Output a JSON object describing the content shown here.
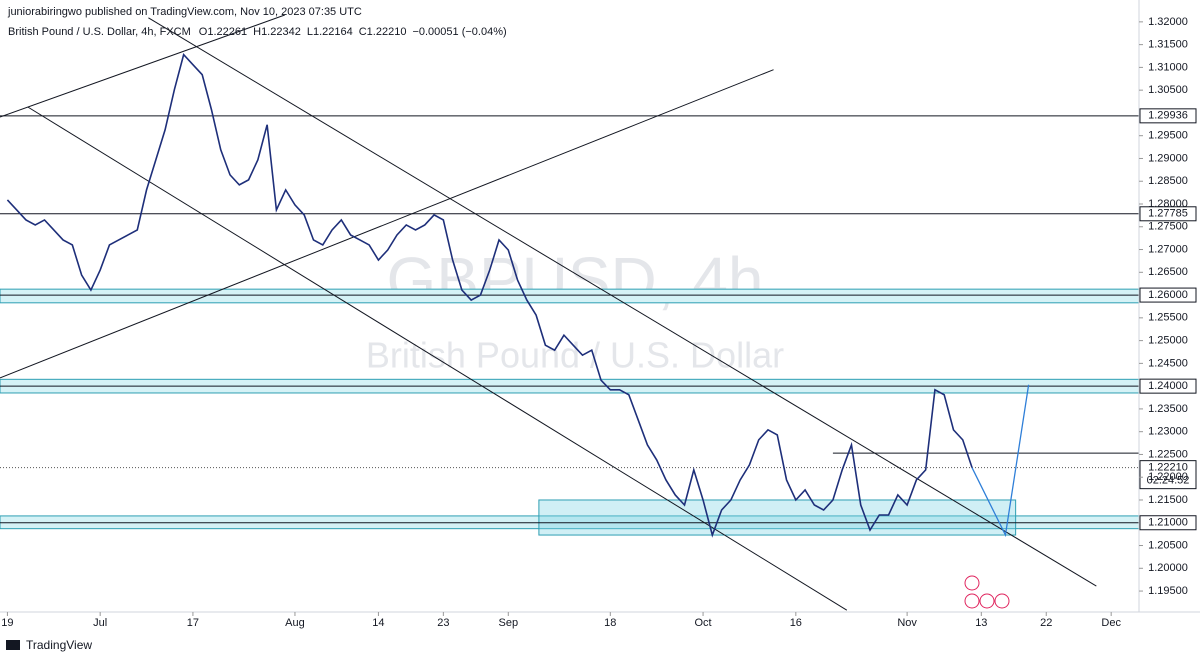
{
  "header": {
    "published": "juniorabiringwo published on TradingView.com, Nov 10, 2023 07:35 UTC",
    "footer": "TradingView"
  },
  "chart_data": {
    "type": "line",
    "title": "British Pound / U.S. Dollar, 4h, FXCM",
    "ohlc": [
      "O1.22261",
      "H1.22342",
      "L1.22164",
      "C1.22210",
      "−0.00051 (−0.04%)"
    ],
    "watermark": [
      "GBPUSD, 4h",
      "British Pound / U.S. Dollar"
    ],
    "x": [
      0,
      1,
      2,
      3,
      4,
      5,
      6,
      7,
      8,
      9,
      10,
      11,
      12,
      13,
      14,
      15,
      16,
      17,
      18,
      19,
      20,
      21,
      22,
      23,
      24,
      25,
      26,
      27,
      28,
      29,
      30,
      31,
      32,
      33,
      34,
      35,
      36,
      37,
      38,
      39,
      40,
      41,
      42,
      43,
      44,
      45,
      46,
      47,
      48,
      49,
      50,
      51,
      52,
      53,
      54,
      55,
      56,
      57,
      58,
      59,
      60,
      61,
      62,
      63,
      64,
      65,
      66,
      67,
      68,
      69,
      70,
      71,
      72,
      73,
      74,
      75,
      76,
      77,
      78,
      79,
      80,
      81,
      82,
      83,
      84,
      85,
      86,
      87,
      88,
      89,
      90,
      91,
      92,
      93,
      94,
      95,
      96,
      97,
      98,
      99,
      100,
      101,
      102,
      103,
      104
    ],
    "series": [
      {
        "color": "#1e2f7a",
        "values": [
          1.2809,
          1.2787,
          1.2765,
          1.2754,
          1.2765,
          1.2743,
          1.2721,
          1.271,
          1.2644,
          1.2611,
          1.2655,
          1.271,
          1.2721,
          1.2732,
          1.2743,
          1.2831,
          1.2897,
          1.2963,
          1.3051,
          1.3128,
          1.3106,
          1.3084,
          1.3007,
          1.2919,
          1.2864,
          1.2842,
          1.2853,
          1.2897,
          1.2974,
          1.2787,
          1.2831,
          1.2798,
          1.2776,
          1.2721,
          1.271,
          1.2743,
          1.2765,
          1.2732,
          1.2721,
          1.271,
          1.2677,
          1.2699,
          1.2732,
          1.2754,
          1.2743,
          1.2754,
          1.2776,
          1.2765,
          1.2677,
          1.2611,
          1.2589,
          1.26,
          1.2655,
          1.2721,
          1.2699,
          1.2633,
          1.2589,
          1.2556,
          1.249,
          1.2479,
          1.2512,
          1.249,
          1.2468,
          1.2479,
          1.2413,
          1.2392,
          1.2392,
          1.2381,
          1.2326,
          1.2271,
          1.2238,
          1.2194,
          1.2161,
          1.2139,
          1.2216,
          1.215,
          1.2073,
          1.2128,
          1.215,
          1.2194,
          1.2227,
          1.2282,
          1.2304,
          1.2293,
          1.2194,
          1.215,
          1.2172,
          1.2139,
          1.2128,
          1.215,
          1.2216,
          1.2271,
          1.2139,
          1.2084,
          1.2117,
          1.2117,
          1.2161,
          1.2139,
          1.2194,
          1.2216,
          1.2392,
          1.2381,
          1.2304,
          1.2282,
          1.2221
        ]
      }
    ],
    "xlim": [
      -0.8,
      122
    ],
    "xticks": [
      {
        "value": 0,
        "label": "19"
      },
      {
        "value": 10,
        "label": "Jul"
      },
      {
        "value": 20,
        "label": "17"
      },
      {
        "value": 31,
        "label": "Aug"
      },
      {
        "value": 40,
        "label": "14"
      },
      {
        "value": 47,
        "label": "23"
      },
      {
        "value": 54,
        "label": "Sep"
      },
      {
        "value": 65,
        "label": "18"
      },
      {
        "value": 75,
        "label": "Oct"
      },
      {
        "value": 85,
        "label": "16"
      },
      {
        "value": 97,
        "label": "Nov"
      },
      {
        "value": 105,
        "label": "13"
      },
      {
        "value": 112,
        "label": "22"
      },
      {
        "value": 119,
        "label": "Dec"
      }
    ],
    "ylim": [
      1.1904,
      1.3248
    ],
    "yticks": [
      {
        "value": 1.195,
        "label": "1.19500"
      },
      {
        "value": 1.2,
        "label": "1.20000"
      },
      {
        "value": 1.205,
        "label": "1.20500"
      },
      {
        "value": 1.215,
        "label": "1.21500"
      },
      {
        "value": 1.22,
        "label": "1.22000"
      },
      {
        "value": 1.225,
        "label": "1.22500"
      },
      {
        "value": 1.23,
        "label": "1.23000"
      },
      {
        "value": 1.235,
        "label": "1.23500"
      },
      {
        "value": 1.245,
        "label": "1.24500"
      },
      {
        "value": 1.25,
        "label": "1.25000"
      },
      {
        "value": 1.255,
        "label": "1.25500"
      },
      {
        "value": 1.265,
        "label": "1.26500"
      },
      {
        "value": 1.27,
        "label": "1.27000"
      },
      {
        "value": 1.275,
        "label": "1.27500"
      },
      {
        "value": 1.28,
        "label": "1.28000"
      },
      {
        "value": 1.285,
        "label": "1.28500"
      },
      {
        "value": 1.29,
        "label": "1.29000"
      },
      {
        "value": 1.295,
        "label": "1.29500"
      },
      {
        "value": 1.305,
        "label": "1.30500"
      },
      {
        "value": 1.31,
        "label": "1.31000"
      },
      {
        "value": 1.315,
        "label": "1.31500"
      },
      {
        "value": 1.32,
        "label": "1.32000"
      }
    ],
    "levels": [
      {
        "value": 1.29936,
        "label": "1.29936"
      },
      {
        "value": 1.27785,
        "label": "1.27785"
      },
      {
        "value": 1.26,
        "label": "1.26000"
      },
      {
        "value": 1.24,
        "label": "1.24000"
      },
      {
        "value": 1.21,
        "label": "1.21000"
      }
    ],
    "zones": [
      {
        "from": 1.2583,
        "to": 1.2613
      },
      {
        "from": 1.2385,
        "to": 1.2415
      },
      {
        "from": 1.2087,
        "to": 1.2115
      }
    ],
    "boxes": [
      {
        "x": [
          57.3,
          108.7
        ],
        "y": [
          1.215,
          1.2073
        ]
      }
    ],
    "trendlines": [
      {
        "x": [
          -0.8,
          82.6
        ],
        "y": [
          1.2418,
          1.3095
        ]
      },
      {
        "x": [
          -0.8,
          29.9
        ],
        "y": [
          1.2991,
          1.3215
        ]
      },
      {
        "x": [
          15.2,
          117.4
        ],
        "y": [
          1.3209,
          1.1961
        ]
      },
      {
        "x": [
          2.2,
          90.5
        ],
        "y": [
          1.3013,
          1.1908
        ]
      },
      {
        "x": [
          89,
          122
        ],
        "y": [
          1.2253,
          1.2253
        ]
      }
    ],
    "projection": {
      "color": "#2f7fd8",
      "x": [
        104,
        107.6,
        110.1
      ],
      "y": [
        1.2221,
        1.2073,
        1.2403
      ]
    },
    "last_price": {
      "value": 1.2221,
      "label": "1.22210",
      "countdown": "02:24:52"
    }
  }
}
